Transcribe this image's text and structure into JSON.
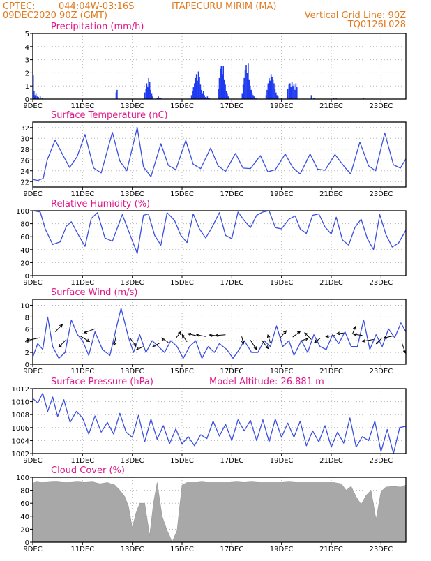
{
  "header": {
    "source": "CPTEC:",
    "coords": "044:04W-03:16S",
    "station": "ITAPECURU MIRIM (MA)",
    "run": "09DEC2020 90Z (GMT)",
    "grid_note": "Vertical Grid Line: 90Z",
    "model": "TQ0126L028"
  },
  "x_axis": {
    "ticks": [
      "9DEC",
      "11DEC",
      "13DEC",
      "15DEC",
      "17DEC",
      "19DEC",
      "21DEC",
      "23DEC"
    ],
    "tick_days": [
      0,
      2,
      4,
      6,
      8,
      10,
      12,
      14
    ],
    "range_days": [
      0,
      15
    ]
  },
  "colors": {
    "line": "#3a4fe0",
    "bar": "#1f3bf0",
    "cloud": "#a8a8a8",
    "title": "#e0188a",
    "header": "#e07a1f"
  },
  "chart_data": [
    {
      "type": "bar",
      "title": "Precipitation (mm/h)",
      "ylim": [
        0,
        5
      ],
      "yticks": [
        0,
        1,
        2,
        3,
        4,
        5
      ],
      "x_days": [
        0.02,
        0.05,
        0.09,
        0.13,
        0.18,
        0.23,
        0.3,
        0.38,
        3.35,
        3.39,
        4.5,
        4.55,
        4.58,
        4.62,
        4.66,
        4.7,
        4.74,
        4.78,
        4.82,
        5.0,
        5.05,
        5.1,
        5.15,
        6.38,
        6.42,
        6.46,
        6.5,
        6.54,
        6.58,
        6.62,
        6.66,
        6.7,
        6.74,
        6.78,
        6.82,
        6.86,
        6.9,
        6.94,
        6.98,
        7.02,
        7.06,
        7.1,
        7.46,
        7.5,
        7.54,
        7.58,
        7.62,
        7.66,
        7.7,
        7.74,
        7.78,
        7.82,
        7.86,
        8.42,
        8.46,
        8.5,
        8.54,
        8.58,
        8.62,
        8.66,
        8.7,
        8.74,
        8.78,
        8.82,
        8.86,
        8.9,
        8.94,
        9.0,
        9.38,
        9.42,
        9.46,
        9.5,
        9.54,
        9.58,
        9.62,
        9.66,
        9.7,
        9.74,
        9.78,
        9.82,
        9.86,
        10.0,
        10.25,
        10.3,
        10.34,
        10.38,
        10.42,
        10.46,
        10.5,
        10.54,
        10.58,
        10.62,
        11.2,
        11.3,
        12.1,
        12.2,
        13.3
      ],
      "values": [
        1.8,
        0.6,
        0.3,
        0.4,
        0.2,
        0.15,
        0.2,
        0.1,
        0.5,
        0.7,
        0.5,
        0.8,
        1.2,
        0.9,
        1.6,
        1.3,
        0.7,
        0.4,
        0.2,
        0.1,
        0.2,
        0.1,
        0.1,
        0.3,
        0.6,
        0.9,
        1.2,
        1.6,
        1.9,
        1.4,
        2.1,
        1.7,
        1.1,
        0.7,
        0.4,
        0.6,
        0.3,
        0.15,
        0.1,
        0.2,
        0.1,
        0.05,
        0.8,
        1.6,
        2.3,
        2.5,
        1.9,
        2.5,
        1.5,
        1.1,
        0.6,
        0.4,
        0.2,
        0.4,
        1.1,
        1.6,
        2.2,
        2.6,
        2.0,
        2.7,
        1.5,
        1.0,
        0.7,
        0.4,
        0.3,
        0.2,
        0.1,
        0.1,
        0.3,
        0.7,
        1.2,
        1.6,
        1.4,
        1.9,
        1.7,
        1.5,
        1.2,
        0.8,
        0.5,
        0.3,
        0.2,
        0.1,
        0.8,
        1.1,
        1.2,
        0.9,
        1.3,
        1.0,
        1.1,
        0.7,
        1.2,
        0.9,
        0.3,
        0.1,
        0.1,
        0.05,
        0.1
      ]
    },
    {
      "type": "line",
      "title": "Surface Temperature (nC)",
      "ylim": [
        21,
        33
      ],
      "yticks": [
        22,
        24,
        26,
        28,
        30,
        32
      ],
      "x_days": [
        0,
        0.2,
        0.42,
        0.58,
        0.9,
        1.2,
        1.48,
        1.78,
        2.1,
        2.45,
        2.75,
        3.2,
        3.5,
        3.78,
        4.2,
        4.45,
        4.75,
        5.15,
        5.45,
        5.75,
        6.15,
        6.45,
        6.75,
        7.15,
        7.45,
        7.75,
        8.15,
        8.45,
        8.75,
        9.15,
        9.45,
        9.75,
        10.15,
        10.45,
        10.75,
        11.15,
        11.45,
        11.75,
        12.15,
        12.5,
        12.78,
        13.15,
        13.5,
        13.78,
        14.15,
        14.5,
        14.78,
        15.0
      ],
      "values": [
        22.4,
        22.2,
        22.6,
        26,
        29.7,
        27,
        24.6,
        26.6,
        30.7,
        24.5,
        23.6,
        31.1,
        25.8,
        24,
        32,
        24.7,
        22.9,
        29,
        25,
        24.2,
        29.6,
        25.2,
        24.4,
        28.2,
        24.9,
        23.9,
        27.2,
        24.5,
        24.4,
        26.8,
        23.8,
        24.2,
        27.1,
        24.6,
        23.4,
        27.1,
        24.3,
        24.1,
        27,
        24.9,
        23.4,
        29.3,
        24.9,
        24,
        31,
        25.1,
        24.5,
        26.2
      ]
    },
    {
      "type": "line",
      "title": "Relative Humidity (%)",
      "ylim": [
        0,
        100
      ],
      "yticks": [
        0,
        20,
        40,
        60,
        80,
        100
      ],
      "x_days": [
        0,
        0.3,
        0.5,
        0.8,
        1.1,
        1.35,
        1.55,
        1.8,
        2.1,
        2.35,
        2.6,
        2.9,
        3.2,
        3.6,
        3.9,
        4.2,
        4.45,
        4.65,
        4.9,
        5.15,
        5.4,
        5.7,
        5.95,
        6.2,
        6.45,
        6.7,
        6.95,
        7.2,
        7.5,
        7.75,
        8.0,
        8.25,
        8.5,
        8.75,
        9.0,
        9.25,
        9.5,
        9.75,
        10.0,
        10.3,
        10.55,
        10.75,
        11.0,
        11.25,
        11.5,
        11.75,
        12.0,
        12.2,
        12.45,
        12.7,
        12.95,
        13.2,
        13.45,
        13.7,
        13.95,
        14.2,
        14.45,
        14.7,
        15.0
      ],
      "values": [
        100,
        98,
        72,
        48,
        52,
        76,
        83,
        65,
        45,
        88,
        97,
        58,
        53,
        94,
        64,
        34,
        93,
        95,
        62,
        47,
        97,
        85,
        62,
        51,
        95,
        72,
        58,
        74,
        97,
        62,
        57,
        98,
        85,
        74,
        93,
        98,
        100,
        74,
        72,
        87,
        92,
        72,
        65,
        93,
        95,
        75,
        64,
        90,
        55,
        47,
        74,
        87,
        57,
        40,
        94,
        63,
        44,
        50,
        70
      ]
    },
    {
      "type": "line",
      "title": "Surface Wind (m/s)",
      "ylim": [
        0,
        11
      ],
      "yticks": [
        0,
        2,
        4,
        6,
        8,
        10
      ],
      "x_days": [
        0,
        0.2,
        0.4,
        0.6,
        0.8,
        1.05,
        1.3,
        1.55,
        1.8,
        2.0,
        2.25,
        2.5,
        2.8,
        3.1,
        3.35,
        3.55,
        3.85,
        4.05,
        4.3,
        4.55,
        4.8,
        5.05,
        5.3,
        5.55,
        5.8,
        6.05,
        6.3,
        6.55,
        6.8,
        7.05,
        7.3,
        7.5,
        7.8,
        8.05,
        8.3,
        8.5,
        8.8,
        9.05,
        9.3,
        9.55,
        9.8,
        10.05,
        10.3,
        10.5,
        10.8,
        11.05,
        11.3,
        11.55,
        11.8,
        12.05,
        12.3,
        12.55,
        12.8,
        13.05,
        13.3,
        13.55,
        13.8,
        14.05,
        14.3,
        14.55,
        14.8,
        15.0
      ],
      "values": [
        1.2,
        3.5,
        2.5,
        8,
        3,
        1,
        2,
        7.5,
        5,
        4,
        1.5,
        5.5,
        2.5,
        1.5,
        6,
        9.5,
        4.5,
        2,
        5,
        2,
        4,
        3,
        2,
        4,
        3,
        1,
        3,
        4,
        1,
        3,
        2,
        3.5,
        2.5,
        1,
        2.5,
        4,
        2,
        2,
        4,
        3,
        6.5,
        3,
        4,
        1.5,
        4,
        2,
        5,
        3,
        2.5,
        5,
        3.5,
        5.5,
        3,
        3,
        7.5,
        2.5,
        5,
        3,
        6,
        4.5,
        7,
        5.5
      ],
      "arrows": {
        "x_days": [
          0.3,
          0.9,
          1.35,
          1.9,
          2.5,
          3.35,
          3.9,
          4.45,
          5.1,
          5.45,
          5.75,
          6.2,
          6.6,
          6.95,
          7.45,
          7.75,
          8.4,
          8.75,
          9.2,
          9.55,
          9.95,
          10.45,
          10.75,
          11.2,
          11.55,
          12.15,
          12.5,
          12.85,
          13.25,
          13.7,
          14.05,
          14.5,
          14.85
        ],
        "y_ms": [
          4.5,
          5.5,
          4.2,
          4.8,
          6,
          4.8,
          4.5,
          3,
          3.6,
          3.7,
          4.4,
          3.8,
          4.8,
          4.7,
          4.8,
          5,
          4.7,
          4.1,
          4.1,
          3.6,
          4.5,
          4.6,
          3.9,
          4.2,
          4.4,
          4.9,
          5.3,
          5.1,
          4.9,
          4.2,
          4.5,
          4.8,
          3.5
        ],
        "u": [
          -4,
          1.8,
          -2,
          2.5,
          -3,
          -0.5,
          1.5,
          -1.3,
          -1.4,
          -1.2,
          1,
          -1,
          -2,
          -2,
          -1.8,
          -2.5,
          0.3,
          1.6,
          1.7,
          -0.5,
          1.3,
          1.7,
          1.6,
          -1.5,
          -0.8,
          -2,
          -1,
          0.6,
          -1.8,
          -3,
          -1.2,
          -2.4,
          0.8
        ],
        "v": [
          -0.8,
          1.8,
          -2,
          -1.5,
          -1.1,
          -2.3,
          -2.1,
          -0.6,
          -0.8,
          0.8,
          1.3,
          1.5,
          0.5,
          0.4,
          0.2,
          -0.2,
          -1.2,
          -2.5,
          -2.2,
          1.6,
          1.5,
          1.3,
          0.6,
          1.5,
          -0.6,
          -0.3,
          -0.1,
          1.5,
          0.2,
          -0.5,
          -1.2,
          -0.5,
          -2.3
        ]
      }
    },
    {
      "type": "line",
      "title": "Surface Pressure (hPa)",
      "annotation": "Model Altitude: 26.881 m",
      "ylim": [
        1002,
        1012
      ],
      "yticks": [
        1002,
        1004,
        1006,
        1008,
        1010,
        1012
      ],
      "x_days": [
        0,
        0.2,
        0.4,
        0.6,
        0.8,
        1.0,
        1.25,
        1.5,
        1.75,
        2.0,
        2.25,
        2.5,
        2.75,
        3.0,
        3.25,
        3.5,
        3.75,
        4.0,
        4.25,
        4.5,
        4.75,
        5.0,
        5.25,
        5.5,
        5.75,
        6.0,
        6.25,
        6.5,
        6.75,
        7.0,
        7.25,
        7.5,
        7.75,
        8.0,
        8.25,
        8.5,
        8.75,
        9.0,
        9.25,
        9.5,
        9.75,
        10.0,
        10.25,
        10.5,
        10.75,
        11.0,
        11.25,
        11.5,
        11.75,
        12.0,
        12.25,
        12.5,
        12.75,
        13.0,
        13.25,
        13.5,
        13.75,
        14.0,
        14.25,
        14.5,
        14.75,
        15.0
      ],
      "values": [
        1010.5,
        1009.8,
        1011.3,
        1008.5,
        1010.7,
        1007.7,
        1010.3,
        1006.8,
        1008.5,
        1007.5,
        1005,
        1007.8,
        1005.3,
        1006.8,
        1005,
        1008.2,
        1005.3,
        1004.5,
        1007.9,
        1003.8,
        1007.3,
        1004.2,
        1006.3,
        1003.5,
        1005.8,
        1003.5,
        1004.6,
        1003.2,
        1004.9,
        1004.3,
        1007,
        1004.7,
        1006.5,
        1004,
        1007.2,
        1005.5,
        1007.1,
        1004,
        1007.2,
        1003.8,
        1007.3,
        1004.5,
        1006.7,
        1004.5,
        1007,
        1003.2,
        1005.5,
        1003.8,
        1006.3,
        1003,
        1005.3,
        1003.6,
        1007.5,
        1003,
        1004.6,
        1004,
        1007,
        1002.3,
        1005.7,
        1002,
        1006,
        1006.2
      ]
    },
    {
      "type": "area",
      "title": "Cloud Cover (%)",
      "ylim": [
        0,
        100
      ],
      "yticks": [
        0,
        20,
        40,
        60,
        80,
        100
      ],
      "x_days": [
        0,
        0.15,
        0.3,
        0.5,
        0.8,
        1.0,
        1.2,
        1.5,
        1.8,
        2.1,
        2.4,
        2.7,
        3.0,
        3.3,
        3.5,
        3.7,
        3.85,
        4.0,
        4.15,
        4.3,
        4.5,
        4.7,
        4.85,
        5.0,
        5.2,
        5.4,
        5.5,
        5.6,
        5.8,
        6.0,
        6.2,
        6.4,
        6.6,
        6.8,
        7.0,
        7.3,
        7.6,
        7.9,
        8.2,
        8.5,
        8.8,
        9.1,
        9.4,
        9.7,
        10.0,
        10.3,
        10.6,
        10.9,
        11.2,
        11.5,
        11.8,
        12.1,
        12.4,
        12.6,
        12.8,
        13.0,
        13.2,
        13.4,
        13.6,
        13.8,
        14.0,
        14.2,
        14.5,
        14.8,
        15.0
      ],
      "values": [
        91,
        93,
        92,
        92,
        93,
        93,
        92,
        92,
        93,
        92,
        93,
        90,
        92,
        88,
        80,
        70,
        55,
        22,
        45,
        60,
        60,
        10,
        60,
        92,
        40,
        18,
        10,
        0,
        18,
        88,
        92,
        92,
        92,
        93,
        92,
        92,
        92,
        92,
        93,
        92,
        93,
        92,
        92,
        92,
        92,
        93,
        92,
        92,
        92,
        92,
        92,
        92,
        90,
        80,
        86,
        70,
        58,
        72,
        80,
        35,
        78,
        85,
        86,
        85,
        88
      ]
    }
  ]
}
